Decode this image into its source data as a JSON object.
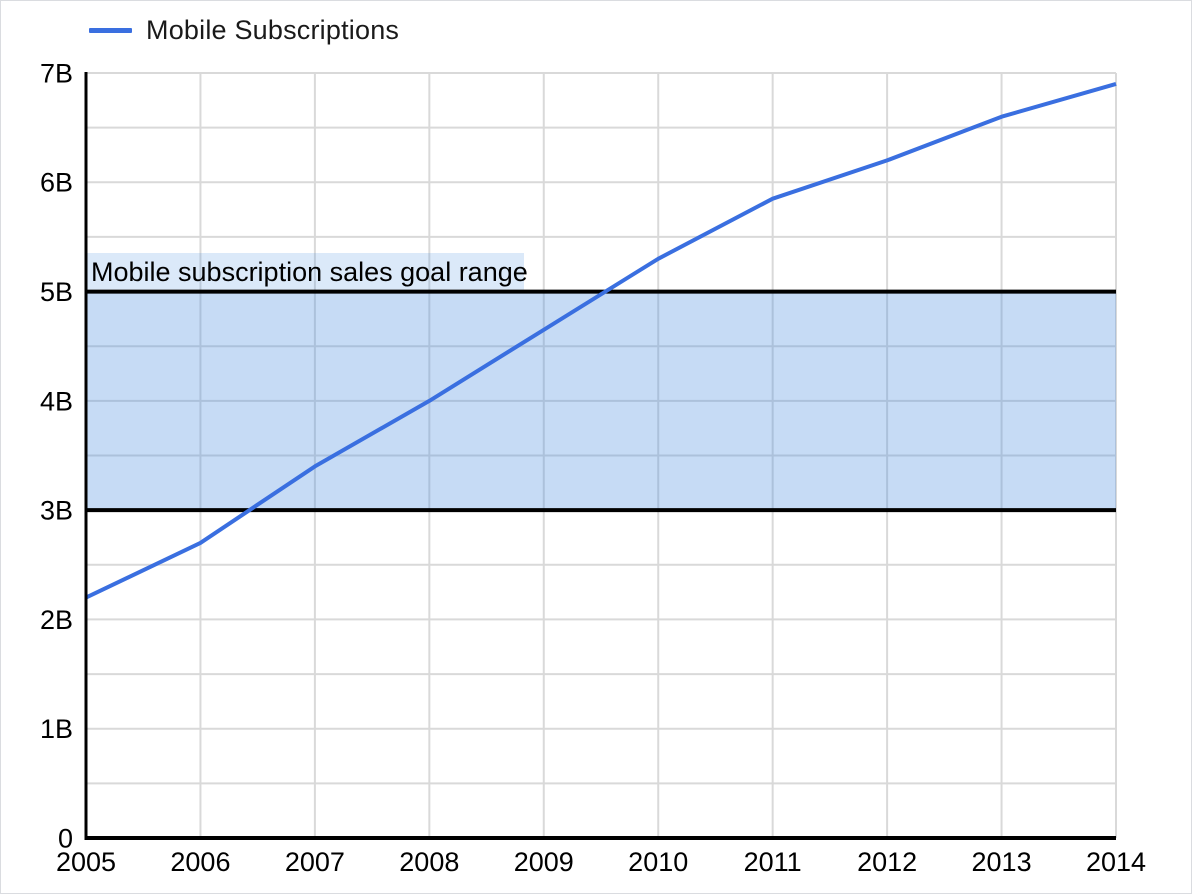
{
  "legend": {
    "position": "top-left",
    "items": [
      {
        "label": "Mobile Subscriptions",
        "color": "#3a6fe0",
        "shape": "line"
      }
    ]
  },
  "chart_data": {
    "type": "line",
    "title": "",
    "xlabel": "",
    "ylabel": "",
    "x": [
      2005,
      2006,
      2007,
      2008,
      2009,
      2010,
      2011,
      2012,
      2013,
      2014
    ],
    "x_tick_labels": [
      "2005",
      "2006",
      "2007",
      "2008",
      "2009",
      "2010",
      "2011",
      "2012",
      "2013",
      "2014"
    ],
    "series": [
      {
        "name": "Mobile Subscriptions",
        "color": "#3a6fe0",
        "line_width": 4,
        "values": [
          2.2,
          2.7,
          3.4,
          4.0,
          4.65,
          5.3,
          5.85,
          6.2,
          6.6,
          6.9
        ]
      }
    ],
    "unit": "billions",
    "ylim": [
      0,
      7
    ],
    "y_major_step": 1,
    "y_minor_step": 0.5,
    "y_tick_labels": [
      "0",
      "1B",
      "2B",
      "3B",
      "4B",
      "5B",
      "6B",
      "7B"
    ],
    "grid": true,
    "legend_position": "top-left",
    "annotations": {
      "band": {
        "label": "Mobile subscription sales goal range",
        "from": 3,
        "to": 5,
        "fill": "#4d90e0",
        "fill_opacity": 0.32,
        "label_bg_opacity": 0.2,
        "border_color": "#000000",
        "border_width": 4
      }
    },
    "colors": {
      "gridline": "#d9d9d9",
      "axis": "#000000",
      "tick_text": "#000000",
      "background": "#ffffff",
      "canvas_border": "#dadce0"
    }
  }
}
